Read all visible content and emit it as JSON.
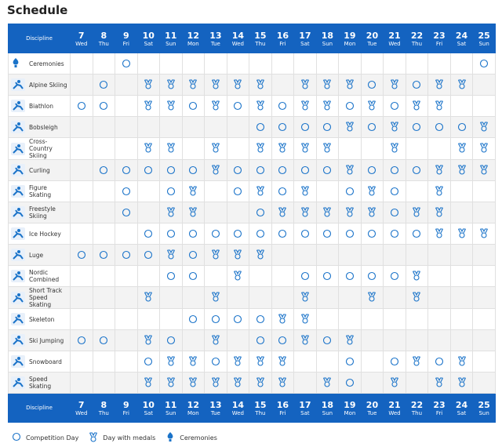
{
  "title": "Schedule",
  "table": {
    "header": "Discipline",
    "days": [
      {
        "day": "7",
        "weekday": "Wed"
      },
      {
        "day": "8",
        "weekday": "Thu"
      },
      {
        "day": "9",
        "weekday": "Fri"
      },
      {
        "day": "10",
        "weekday": "Sat"
      },
      {
        "day": "11",
        "weekday": "Sun"
      },
      {
        "day": "12",
        "weekday": "Mon"
      },
      {
        "day": "13",
        "weekday": "Tue"
      },
      {
        "day": "14",
        "weekday": "Wed"
      },
      {
        "day": "15",
        "weekday": "Thu"
      },
      {
        "day": "16",
        "weekday": "Fri"
      },
      {
        "day": "17",
        "weekday": "Sat"
      },
      {
        "day": "18",
        "weekday": "Sun"
      },
      {
        "day": "19",
        "weekday": "Mon"
      },
      {
        "day": "20",
        "weekday": "Tue"
      },
      {
        "day": "21",
        "weekday": "Wed"
      },
      {
        "day": "22",
        "weekday": "Thu"
      },
      {
        "day": "23",
        "weekday": "Fri"
      },
      {
        "day": "24",
        "weekday": "Sat"
      },
      {
        "day": "25",
        "weekday": "Sun"
      }
    ],
    "rows": [
      {
        "name": "Ceremonies",
        "cells": [
          null,
          null,
          "o",
          null,
          null,
          null,
          null,
          null,
          null,
          null,
          null,
          null,
          null,
          null,
          null,
          null,
          null,
          null,
          "o"
        ]
      },
      {
        "name": "Alpine Skiing",
        "cells": [
          null,
          "o",
          null,
          "m",
          "m",
          "m",
          "m",
          "m",
          "m",
          null,
          "m",
          "m",
          "m",
          "o",
          "m",
          "o",
          "m",
          "m",
          null
        ]
      },
      {
        "name": "Biathlon",
        "cells": [
          "o",
          "o",
          null,
          "m",
          "m",
          "o",
          "m",
          "o",
          "m",
          "o",
          "m",
          "m",
          "o",
          "m",
          "o",
          "m",
          "m",
          null,
          null
        ]
      },
      {
        "name": "Bobsleigh",
        "cells": [
          null,
          null,
          null,
          null,
          null,
          null,
          null,
          null,
          "o",
          "o",
          "o",
          "o",
          "m",
          "o",
          "m",
          "o",
          "o",
          "o",
          "m"
        ]
      },
      {
        "name": "Cross-Country Skiing",
        "cells": [
          null,
          null,
          null,
          "m",
          "m",
          null,
          "m",
          null,
          "m",
          "m",
          "m",
          "m",
          null,
          null,
          "m",
          null,
          null,
          "m",
          "m"
        ]
      },
      {
        "name": "Curling",
        "cells": [
          null,
          "o",
          "o",
          "o",
          "o",
          "o",
          "m",
          "o",
          "o",
          "o",
          "o",
          "o",
          "m",
          "o",
          "o",
          "o",
          "m",
          "m",
          "m"
        ]
      },
      {
        "name": "Figure Skating",
        "cells": [
          null,
          null,
          "o",
          null,
          "o",
          "m",
          null,
          "o",
          "m",
          "o",
          "m",
          null,
          "o",
          "m",
          "o",
          null,
          "m",
          null,
          null
        ]
      },
      {
        "name": "Freestyle Skiing",
        "cells": [
          null,
          null,
          "o",
          null,
          "m",
          "m",
          null,
          null,
          "o",
          "m",
          "m",
          "m",
          "m",
          "m",
          "o",
          "m",
          "m",
          null,
          null
        ]
      },
      {
        "name": "Ice Hockey",
        "cells": [
          null,
          null,
          null,
          "o",
          "o",
          "o",
          "o",
          "o",
          "o",
          "o",
          "o",
          "o",
          "o",
          "o",
          "o",
          "o",
          "m",
          "m",
          "m"
        ]
      },
      {
        "name": "Luge",
        "cells": [
          "o",
          "o",
          "o",
          "o",
          "m",
          "o",
          "m",
          "m",
          "m",
          null,
          null,
          null,
          null,
          null,
          null,
          null,
          null,
          null,
          null
        ]
      },
      {
        "name": "Nordic Combined",
        "cells": [
          null,
          null,
          null,
          null,
          "o",
          "o",
          null,
          "m",
          null,
          null,
          "o",
          "o",
          "o",
          "o",
          "o",
          "m",
          null,
          null,
          null
        ]
      },
      {
        "name": "Short Track Speed Skating",
        "cells": [
          null,
          null,
          null,
          "m",
          null,
          null,
          "m",
          null,
          null,
          null,
          "m",
          null,
          null,
          "m",
          null,
          "m",
          null,
          null,
          null
        ]
      },
      {
        "name": "Skeleton",
        "cells": [
          null,
          null,
          null,
          null,
          null,
          "o",
          "o",
          "o",
          "o",
          "m",
          "m",
          null,
          null,
          null,
          null,
          null,
          null,
          null,
          null
        ]
      },
      {
        "name": "Ski Jumping",
        "cells": [
          "o",
          "o",
          null,
          "m",
          "o",
          null,
          "m",
          null,
          "o",
          "o",
          "m",
          "o",
          "m",
          null,
          null,
          null,
          null,
          null,
          null
        ]
      },
      {
        "name": "Snowboard",
        "cells": [
          null,
          null,
          null,
          "o",
          "m",
          "m",
          "o",
          "m",
          "m",
          "m",
          null,
          null,
          "o",
          null,
          "o",
          "m",
          "o",
          "m",
          null
        ]
      },
      {
        "name": "Speed Skating",
        "cells": [
          null,
          null,
          null,
          "m",
          "m",
          "m",
          "m",
          "m",
          "m",
          "m",
          null,
          "m",
          "o",
          null,
          "m",
          null,
          "m",
          "m",
          null
        ]
      }
    ]
  },
  "legend": [
    "Competition Day",
    "Day with medals",
    "Ceremonies"
  ]
}
